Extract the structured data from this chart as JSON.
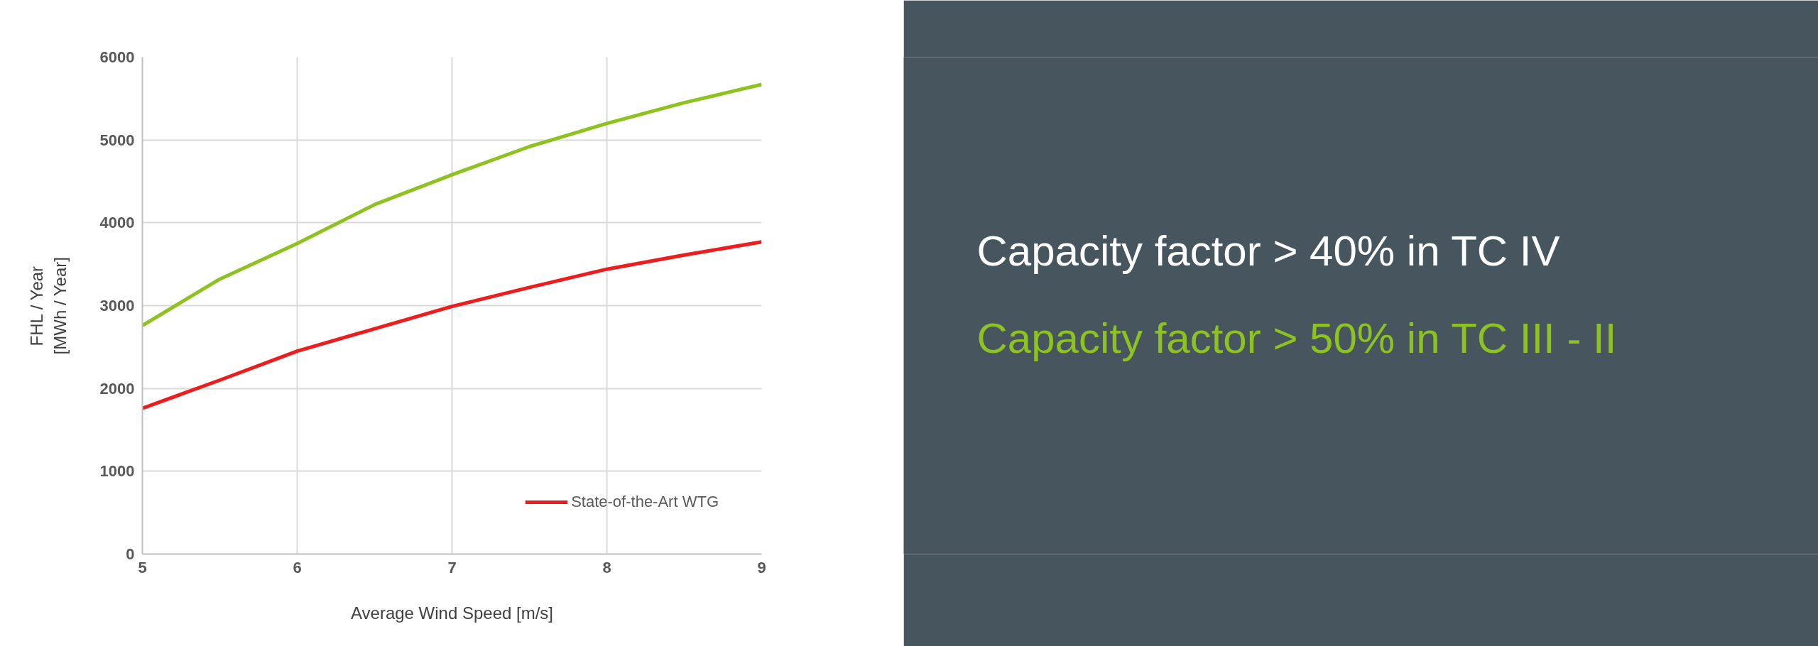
{
  "chart_data": [
    {
      "type": "line",
      "xlabel": "Average Wind Speed [m/s]",
      "ylabel": "FHL / Year\n[MWh / Year]",
      "x": [
        5,
        5.5,
        6,
        6.5,
        7,
        7.5,
        8,
        8.5,
        9
      ],
      "series": [
        {
          "color": "#8dc21f",
          "values": [
            2760,
            3320,
            3750,
            4220,
            4580,
            4920,
            5200,
            5450,
            5670
          ]
        },
        {
          "name": "State-of-the-Art WTG",
          "color": "#ee1c1c",
          "values": [
            1760,
            2100,
            2450,
            2720,
            2990,
            3220,
            3440,
            3610,
            3770
          ]
        }
      ],
      "xlim": [
        5,
        9
      ],
      "xticks": [
        5,
        6,
        7,
        8,
        9
      ],
      "ylim": [
        0,
        6000
      ],
      "yticks": [
        0,
        1000,
        2000,
        3000,
        4000,
        5000,
        6000
      ],
      "grid": true,
      "legend": "bottom right",
      "marker": "none",
      "line_style": "solid"
    },
    {
      "type": "other",
      "annotations": [
        "Capacity factor > 40% in TC IV",
        "Capacity factor > 50% in TC III - II"
      ]
    }
  ]
}
